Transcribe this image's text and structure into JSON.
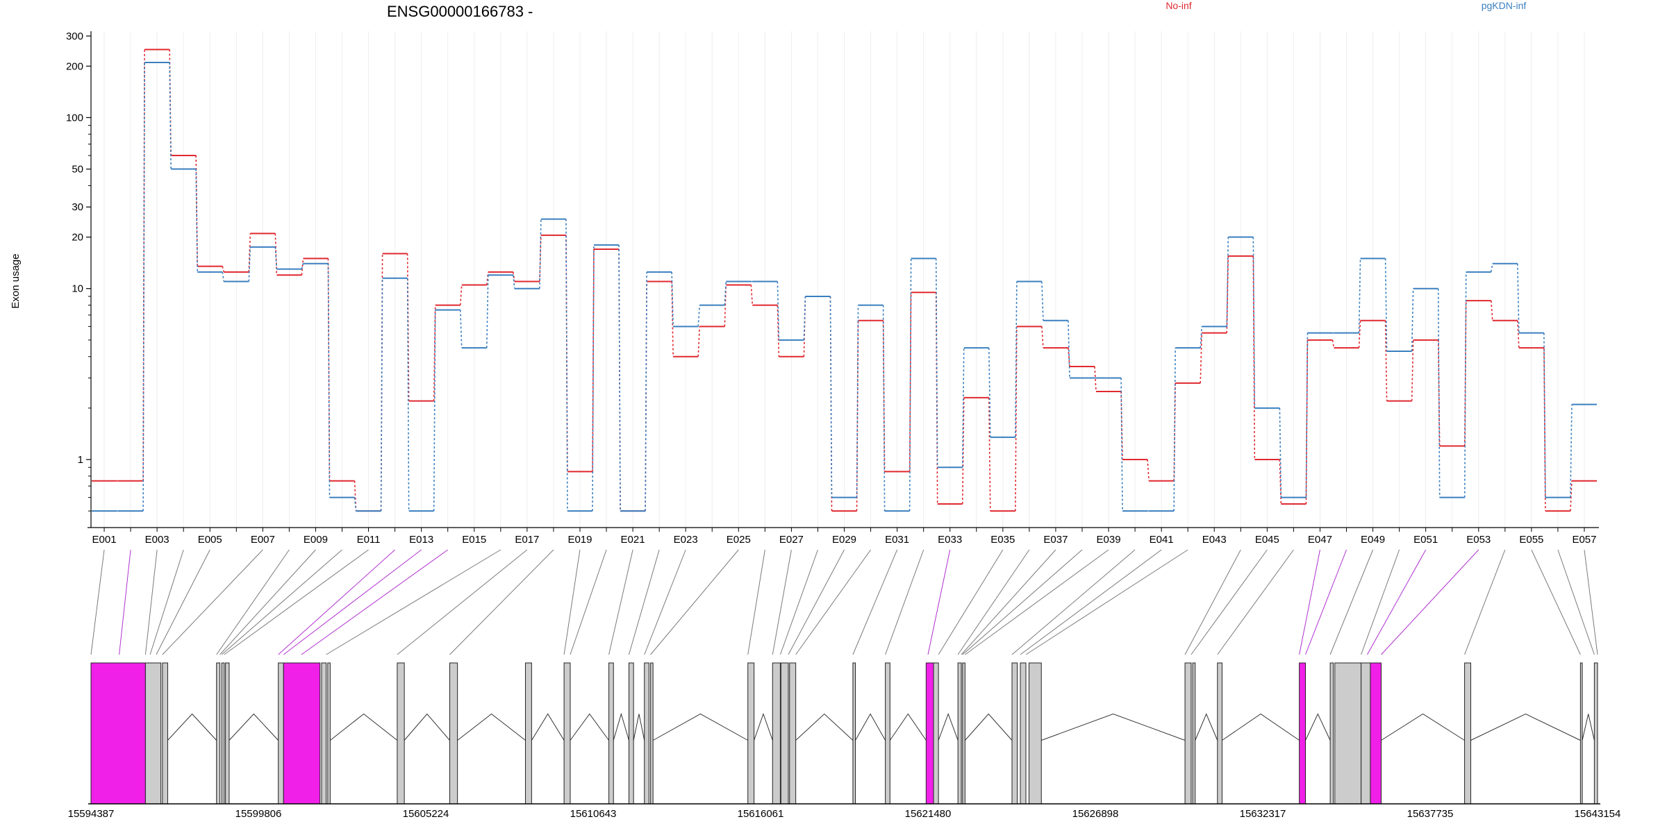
{
  "chart_data": {
    "type": "line",
    "title": "ENSG00000166783 -",
    "ylabel": "Exon usage",
    "xlabel": "",
    "y_scale": "log",
    "ylim": [
      0.4,
      320
    ],
    "y_ticks": [
      1,
      10,
      20,
      30,
      50,
      100,
      200,
      300
    ],
    "legend_placement": "top-right",
    "grid": "vertical-light",
    "colors": {
      "No-inf": "#e0282f",
      "pgKDN-inf": "#3a7fbf",
      "highlight": "#f020e8",
      "exon": "#cccccc"
    },
    "categories": [
      "E001",
      "E002",
      "E003",
      "E004",
      "E005",
      "E006",
      "E007",
      "E008",
      "E009",
      "E010",
      "E011",
      "E012",
      "E013",
      "E014",
      "E015",
      "E016",
      "E017",
      "E018",
      "E019",
      "E020",
      "E021",
      "E022",
      "E023",
      "E024",
      "E025",
      "E026",
      "E027",
      "E028",
      "E029",
      "E030",
      "E031",
      "E032",
      "E033",
      "E034",
      "E035",
      "E036",
      "E037",
      "E038",
      "E039",
      "E040",
      "E041",
      "E042",
      "E043",
      "E044",
      "E045",
      "E046",
      "E047",
      "E048",
      "E049",
      "E050",
      "E051",
      "E052",
      "E053",
      "E054",
      "E055",
      "E056",
      "E057"
    ],
    "x_tick_labels": [
      "E001",
      "E003",
      "E005",
      "E007",
      "E009",
      "E011",
      "E013",
      "E015",
      "E017",
      "E019",
      "E021",
      "E023",
      "E025",
      "E027",
      "E029",
      "E031",
      "E033",
      "E035",
      "E037",
      "E039",
      "E041",
      "E043",
      "E045",
      "E047",
      "E049",
      "E051",
      "E053",
      "E055",
      "E057"
    ],
    "series": [
      {
        "name": "No-inf",
        "color": "#e0282f",
        "values": [
          0.75,
          0.75,
          250,
          60,
          13.5,
          12.5,
          21,
          12,
          15,
          0.75,
          0.5,
          16,
          2.2,
          8,
          10.5,
          12.5,
          11,
          20.5,
          0.85,
          17,
          0.5,
          11,
          4,
          6,
          10.5,
          8,
          4,
          9,
          0.5,
          6.5,
          0.85,
          9.5,
          0.55,
          2.3,
          0.5,
          6,
          4.5,
          3.5,
          2.5,
          1,
          0.75,
          2.8,
          5.5,
          15.5,
          1,
          0.55,
          5,
          4.5,
          6.5,
          2.2,
          5,
          1.2,
          8.5,
          6.5,
          4.5,
          0.5,
          0.75
        ]
      },
      {
        "name": "pgKDN-inf",
        "color": "#3a7fbf",
        "values": [
          0.5,
          0.5,
          210,
          50,
          12.5,
          11,
          17.5,
          13,
          14,
          0.6,
          0.5,
          11.5,
          0.5,
          7.5,
          4.5,
          12,
          10,
          25.5,
          0.5,
          18,
          0.5,
          12.5,
          6,
          8,
          11,
          11,
          5,
          9,
          0.6,
          8,
          0.5,
          15,
          0.9,
          4.5,
          1.35,
          11,
          6.5,
          3,
          3,
          0.5,
          0.5,
          4.5,
          6,
          20,
          2,
          0.6,
          5.5,
          5.5,
          15,
          4.3,
          10,
          0.6,
          12.5,
          14,
          5.5,
          0.6,
          2.1
        ]
      }
    ],
    "genomic_axis_labels": [
      "15594387",
      "15599806",
      "15605224",
      "15610643",
      "15616061",
      "15621480",
      "15626898",
      "15632317",
      "15637735",
      "15643154"
    ],
    "genomic_range": [
      15594387,
      15643154
    ],
    "gene_model": [
      {
        "start": 15594387,
        "end": 15596150,
        "highlight": true
      },
      {
        "start": 15596150,
        "end": 15596650,
        "highlight": false
      },
      {
        "start": 15596700,
        "end": 15596870,
        "highlight": false
      },
      {
        "start": 15598450,
        "end": 15598560,
        "highlight": false
      },
      {
        "start": 15598620,
        "end": 15598700,
        "highlight": false
      },
      {
        "start": 15598740,
        "end": 15598860,
        "highlight": false
      },
      {
        "start": 15600450,
        "end": 15600620,
        "highlight": false
      },
      {
        "start": 15600620,
        "end": 15601800,
        "highlight": true
      },
      {
        "start": 15601850,
        "end": 15602000,
        "highlight": false
      },
      {
        "start": 15602050,
        "end": 15602130,
        "highlight": false
      },
      {
        "start": 15604300,
        "end": 15604530,
        "highlight": false
      },
      {
        "start": 15606000,
        "end": 15606250,
        "highlight": false
      },
      {
        "start": 15608450,
        "end": 15608650,
        "highlight": false
      },
      {
        "start": 15609700,
        "end": 15609900,
        "highlight": false
      },
      {
        "start": 15611150,
        "end": 15611300,
        "highlight": false
      },
      {
        "start": 15611800,
        "end": 15611950,
        "highlight": false
      },
      {
        "start": 15612300,
        "end": 15612450,
        "highlight": false
      },
      {
        "start": 15612500,
        "end": 15612580,
        "highlight": false
      },
      {
        "start": 15615650,
        "end": 15615850,
        "highlight": false
      },
      {
        "start": 15616450,
        "end": 15616700,
        "highlight": false
      },
      {
        "start": 15616720,
        "end": 15616960,
        "highlight": false
      },
      {
        "start": 15617000,
        "end": 15617200,
        "highlight": false
      },
      {
        "start": 15619050,
        "end": 15619130,
        "highlight": false
      },
      {
        "start": 15620100,
        "end": 15620250,
        "highlight": false
      },
      {
        "start": 15621420,
        "end": 15621660,
        "highlight": true
      },
      {
        "start": 15621660,
        "end": 15621820,
        "highlight": false
      },
      {
        "start": 15622450,
        "end": 15622560,
        "highlight": false
      },
      {
        "start": 15622600,
        "end": 15622680,
        "highlight": false
      },
      {
        "start": 15624200,
        "end": 15624370,
        "highlight": false
      },
      {
        "start": 15624470,
        "end": 15624650,
        "highlight": false
      },
      {
        "start": 15624750,
        "end": 15625150,
        "highlight": false
      },
      {
        "start": 15629800,
        "end": 15630000,
        "highlight": false
      },
      {
        "start": 15630050,
        "end": 15630130,
        "highlight": false
      },
      {
        "start": 15630850,
        "end": 15631000,
        "highlight": false
      },
      {
        "start": 15633500,
        "end": 15633700,
        "highlight": true
      },
      {
        "start": 15634500,
        "end": 15634600,
        "highlight": false
      },
      {
        "start": 15634650,
        "end": 15635500,
        "highlight": false
      },
      {
        "start": 15635500,
        "end": 15635800,
        "highlight": false
      },
      {
        "start": 15635800,
        "end": 15636150,
        "highlight": true
      },
      {
        "start": 15638850,
        "end": 15639050,
        "highlight": false
      },
      {
        "start": 15642600,
        "end": 15642660,
        "highlight": false
      },
      {
        "start": 15643050,
        "end": 15643154,
        "highlight": false
      }
    ],
    "connector_targets": [
      15594387,
      15595300,
      15596150,
      15596300,
      15596500,
      15596700,
      15598450,
      15598560,
      15598620,
      15598700,
      15600450,
      15600620,
      15601200,
      15602000,
      15604300,
      15606000,
      15609700,
      15609900,
      15611150,
      15611800,
      15612300,
      15612500,
      15615650,
      15616450,
      15616700,
      15616960,
      15617200,
      15619050,
      15620100,
      15621480,
      15621820,
      15622450,
      15622560,
      15622600,
      15622680,
      15624200,
      15624470,
      15624650,
      15629800,
      15630000,
      15630850,
      15633500,
      15633700,
      15634500,
      15635500,
      15635700,
      15636150,
      15638850,
      15642600,
      15643050,
      15643154
    ],
    "connector_highlight": [
      false,
      true,
      false,
      false,
      false,
      false,
      false,
      false,
      false,
      false,
      true,
      true,
      true,
      false,
      false,
      false,
      false,
      false,
      false,
      false,
      false,
      false,
      false,
      false,
      false,
      false,
      false,
      false,
      false,
      true,
      false,
      false,
      false,
      false,
      false,
      false,
      false,
      false,
      false,
      false,
      false,
      true,
      true,
      false,
      false,
      true,
      true,
      false,
      false,
      false,
      false
    ]
  },
  "legend": [
    {
      "label": "No-inf",
      "color": "#e0282f"
    },
    {
      "label": "pgKDN-inf",
      "color": "#3a7fbf"
    }
  ]
}
